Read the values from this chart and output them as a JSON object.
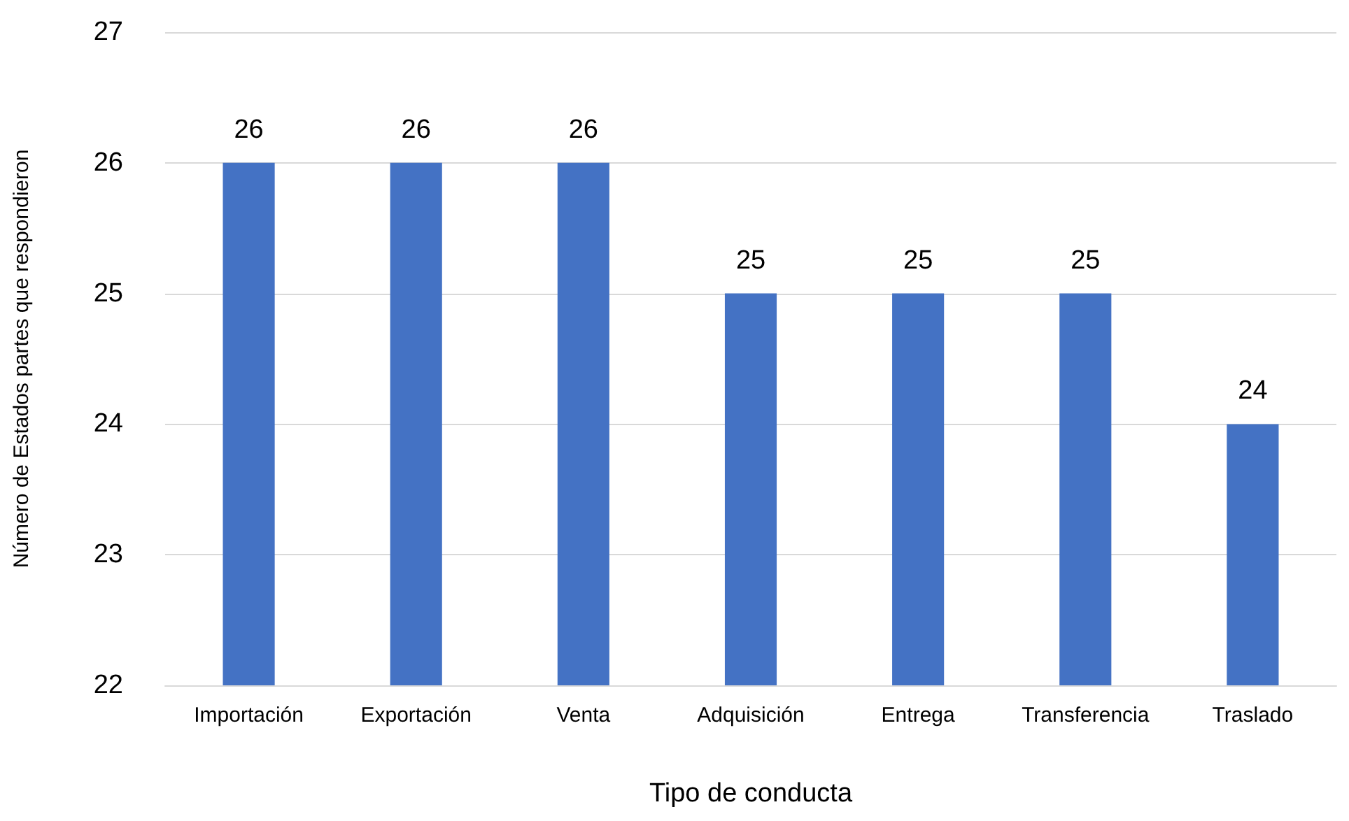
{
  "chart_data": {
    "type": "bar",
    "xlabel": "Tipo de conducta",
    "ylabel": "Número de Estados partes que respondieron",
    "categories": [
      "Importación",
      "Exportación",
      "Venta",
      "Adquisición",
      "Entrega",
      "Transferencia",
      "Traslado"
    ],
    "values": [
      26,
      26,
      26,
      25,
      25,
      25,
      24
    ],
    "color": "#4472c4",
    "ylim": [
      22,
      27
    ],
    "yticks": [
      22,
      23,
      24,
      25,
      26,
      27
    ],
    "grid": "y",
    "data_labels": true
  }
}
